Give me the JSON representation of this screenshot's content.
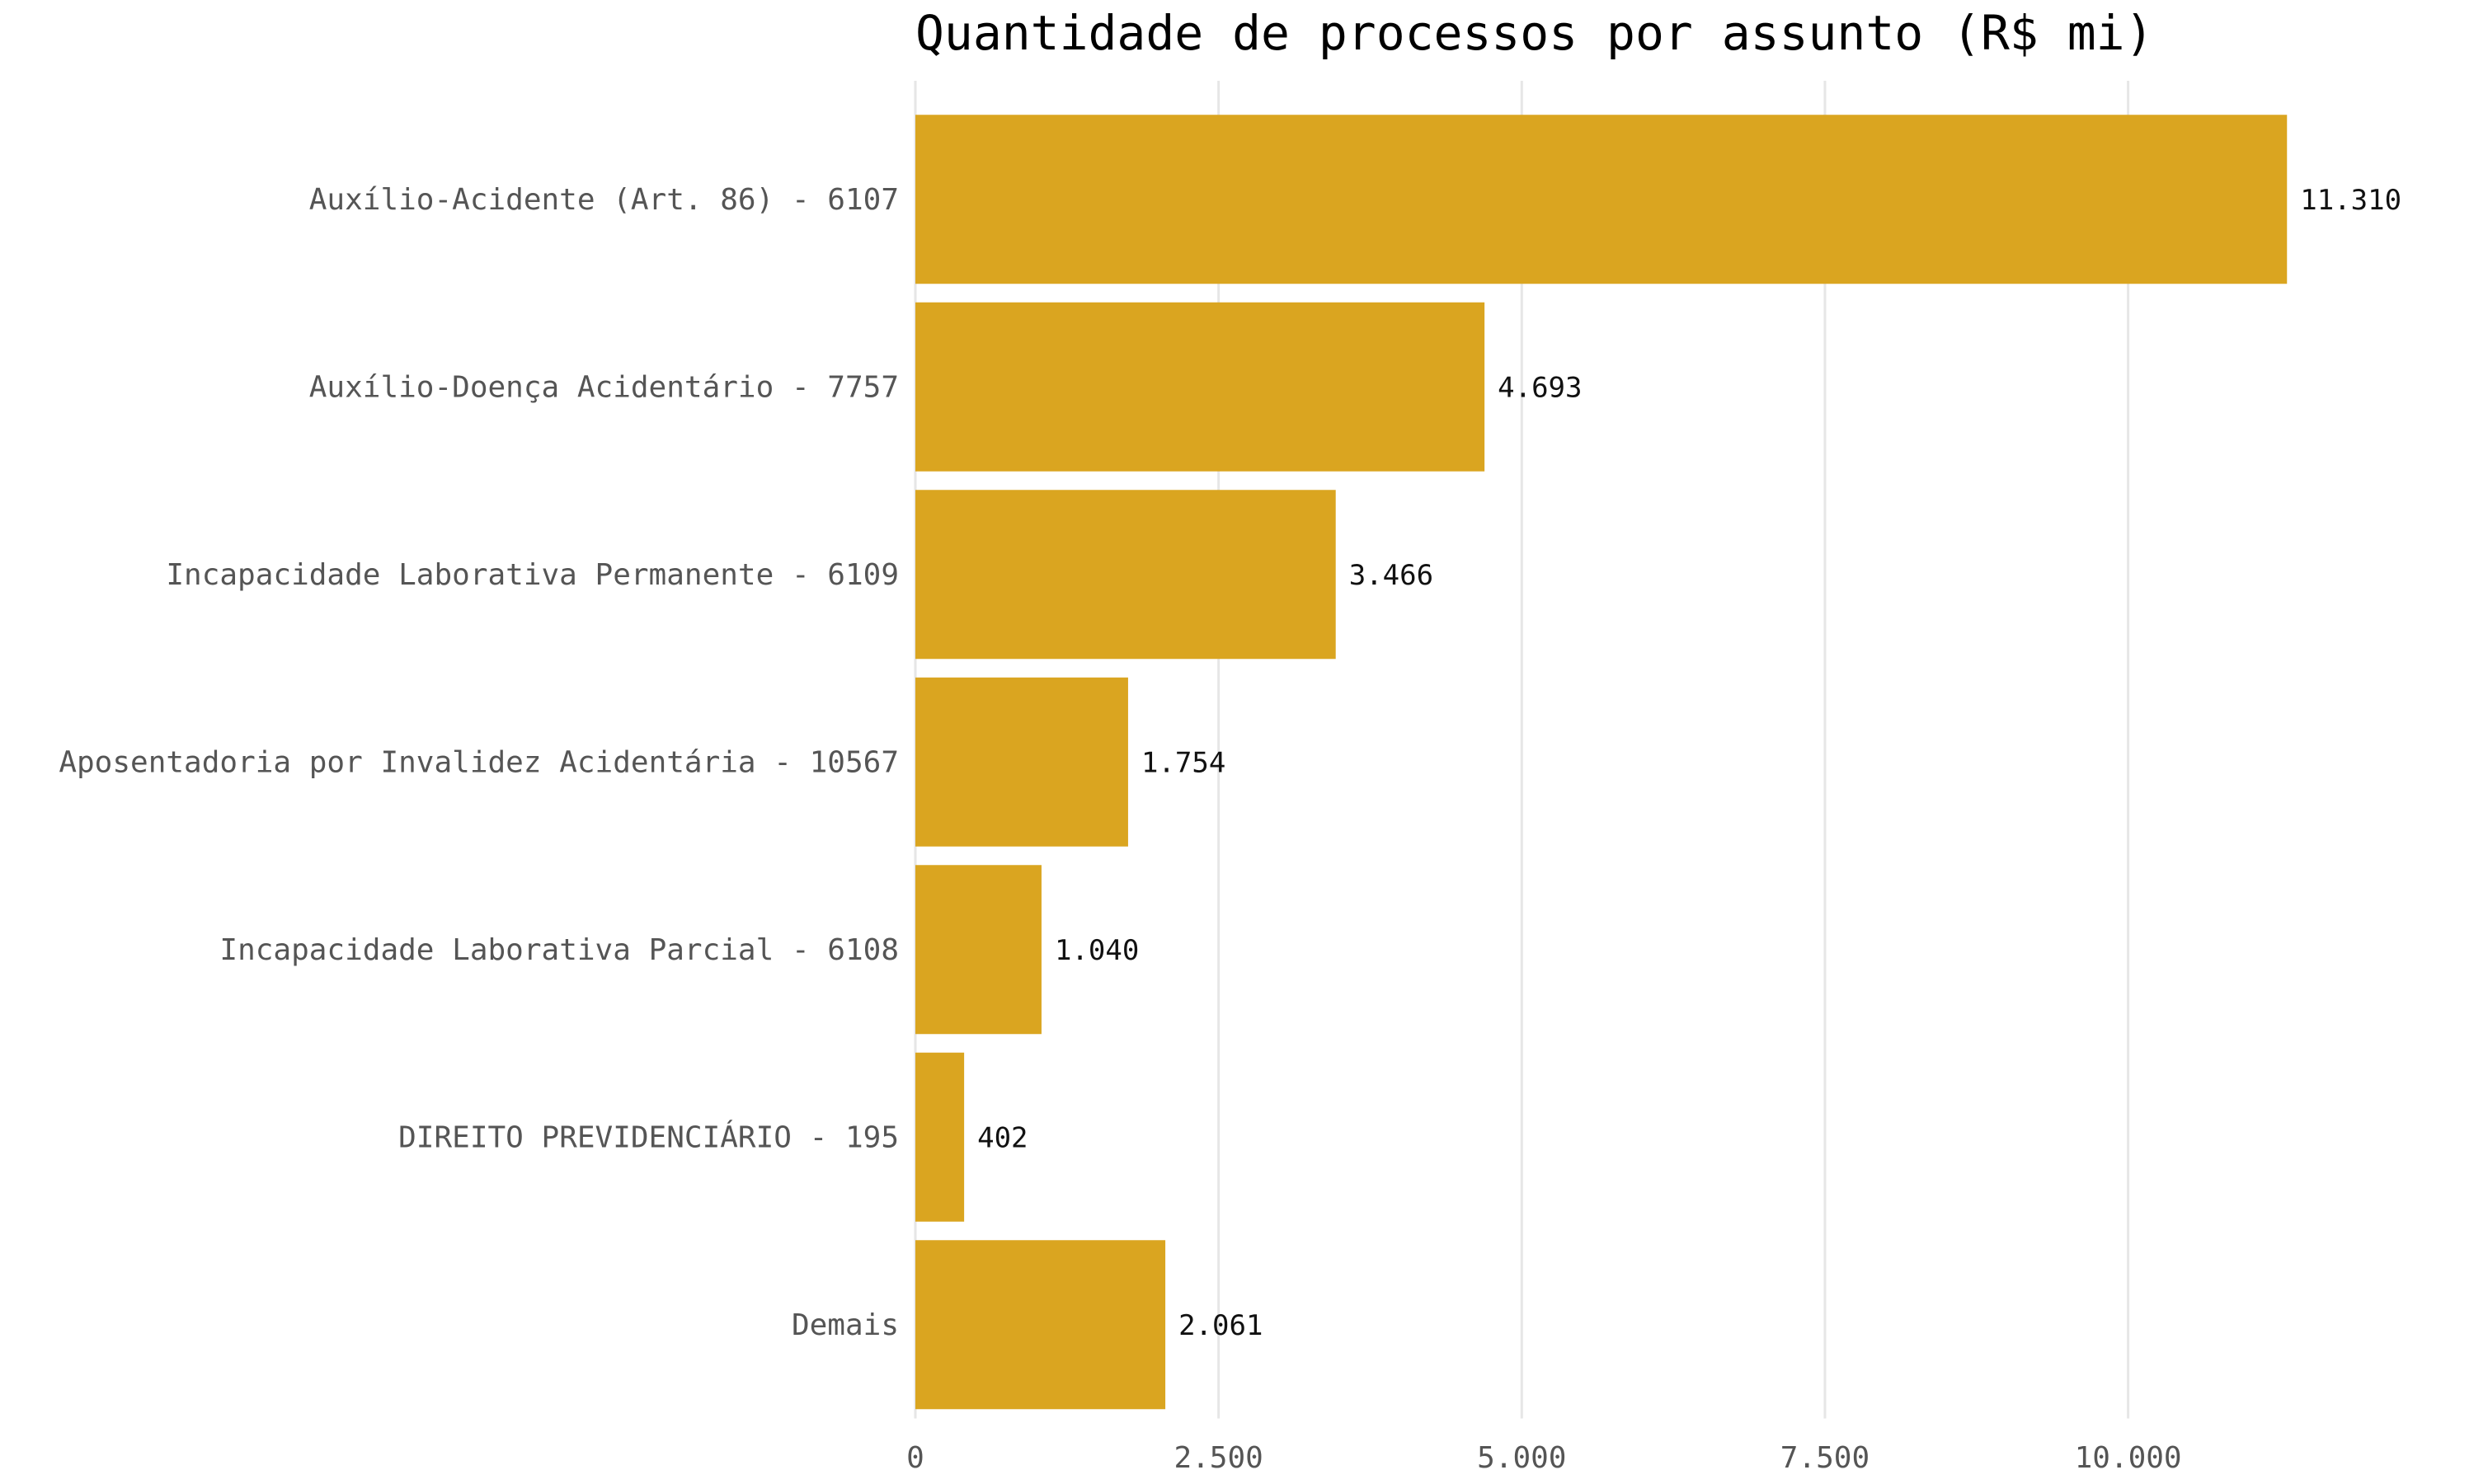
{
  "chart_data": {
    "type": "bar",
    "orientation": "horizontal",
    "title": "Quantidade de processos por assunto (R$ mi)",
    "xlabel": "",
    "ylabel": "",
    "categories": [
      "Auxílio-Acidente (Art. 86) - 6107",
      "Auxílio-Doença Acidentário - 7757",
      "Incapacidade Laborativa Permanente - 6109",
      "Aposentadoria por Invalidez Acidentária - 10567",
      "Incapacidade Laborativa Parcial - 6108",
      "DIREITO PREVIDENCIÁRIO - 195",
      "Demais"
    ],
    "values": [
      11310,
      4693,
      3466,
      1754,
      1040,
      402,
      2061
    ],
    "value_labels": [
      "11.310",
      "4.693",
      "3.466",
      "1.754",
      "1.040",
      "402",
      "2.061"
    ],
    "xlim": [
      0,
      11900
    ],
    "x_ticks": [
      0,
      2500,
      5000,
      7500,
      10000
    ],
    "x_tick_labels": [
      "0",
      "2.500",
      "5.000",
      "7.500",
      "10.000"
    ],
    "grid": "vertical-major",
    "legend": "none",
    "bar_color": "#DAA520",
    "grid_color": "#e6e6e6",
    "background": "#ffffff"
  }
}
